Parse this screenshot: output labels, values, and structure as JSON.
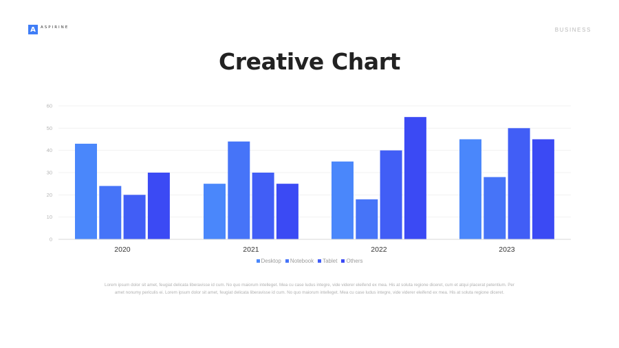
{
  "brand": {
    "mark": "A",
    "name": "ASPIRINE"
  },
  "section_label": "BUSINESS",
  "title": "Creative Chart",
  "body_text": "Lorem ipsum dolor sit amet, feugiat delicata liberavisse id cum. No quo maiorum intelleget. Mea cu case ludus integre, vide viderer eleifend ex mea. His at soluta regione diceret, cum et atqui placerat petentium. Per amet nonumy periculis ei. Lorem ipsum dolor sit amet, feugiat delicata liberavisse id cum. No quo maiorum intelleget. Mea cu case ludus integre, vide viderer eleifend ex mea. His at soluta regione diceret.",
  "chart_data": {
    "type": "bar",
    "categories": [
      "2020",
      "2021",
      "2022",
      "2023"
    ],
    "series": [
      {
        "name": "Desktop",
        "color": "#4a87fb",
        "values": [
          43,
          25,
          35,
          45
        ]
      },
      {
        "name": "Notebook",
        "color": "#4674f8",
        "values": [
          24,
          44,
          18,
          28
        ]
      },
      {
        "name": "Tablet",
        "color": "#415ef6",
        "values": [
          20,
          30,
          40,
          50
        ]
      },
      {
        "name": "Others",
        "color": "#3b4af4",
        "values": [
          30,
          25,
          55,
          45
        ]
      }
    ],
    "ylim": [
      0,
      60
    ],
    "yticks": [
      0,
      10,
      20,
      30,
      40,
      50,
      60
    ],
    "grid": true,
    "legend_position": "bottom",
    "title": "",
    "xlabel": "",
    "ylabel": ""
  }
}
